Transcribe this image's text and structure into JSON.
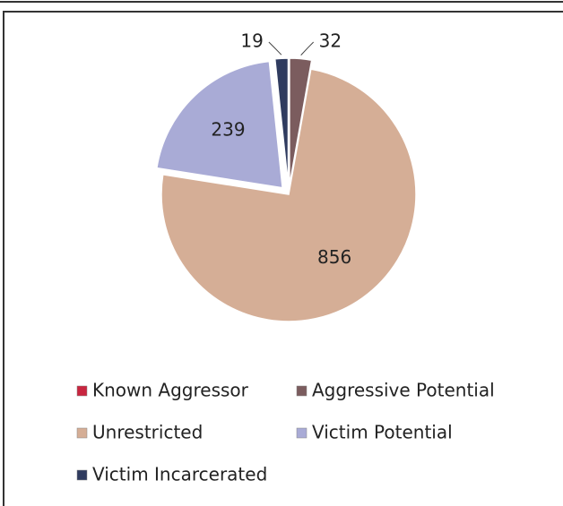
{
  "chart_data": {
    "type": "pie",
    "categories": [
      "Known Aggressor",
      "Aggressive Potential",
      "Unrestricted",
      "Victim Potential",
      "Victim Incarcerated"
    ],
    "values": [
      0,
      32,
      856,
      239,
      19
    ],
    "colors": [
      "#c8253f",
      "#7b5c5e",
      "#d5ae96",
      "#a9abd6",
      "#2f3b5f"
    ],
    "exploded": [
      false,
      true,
      false,
      true,
      true
    ],
    "legend": "bottom"
  }
}
